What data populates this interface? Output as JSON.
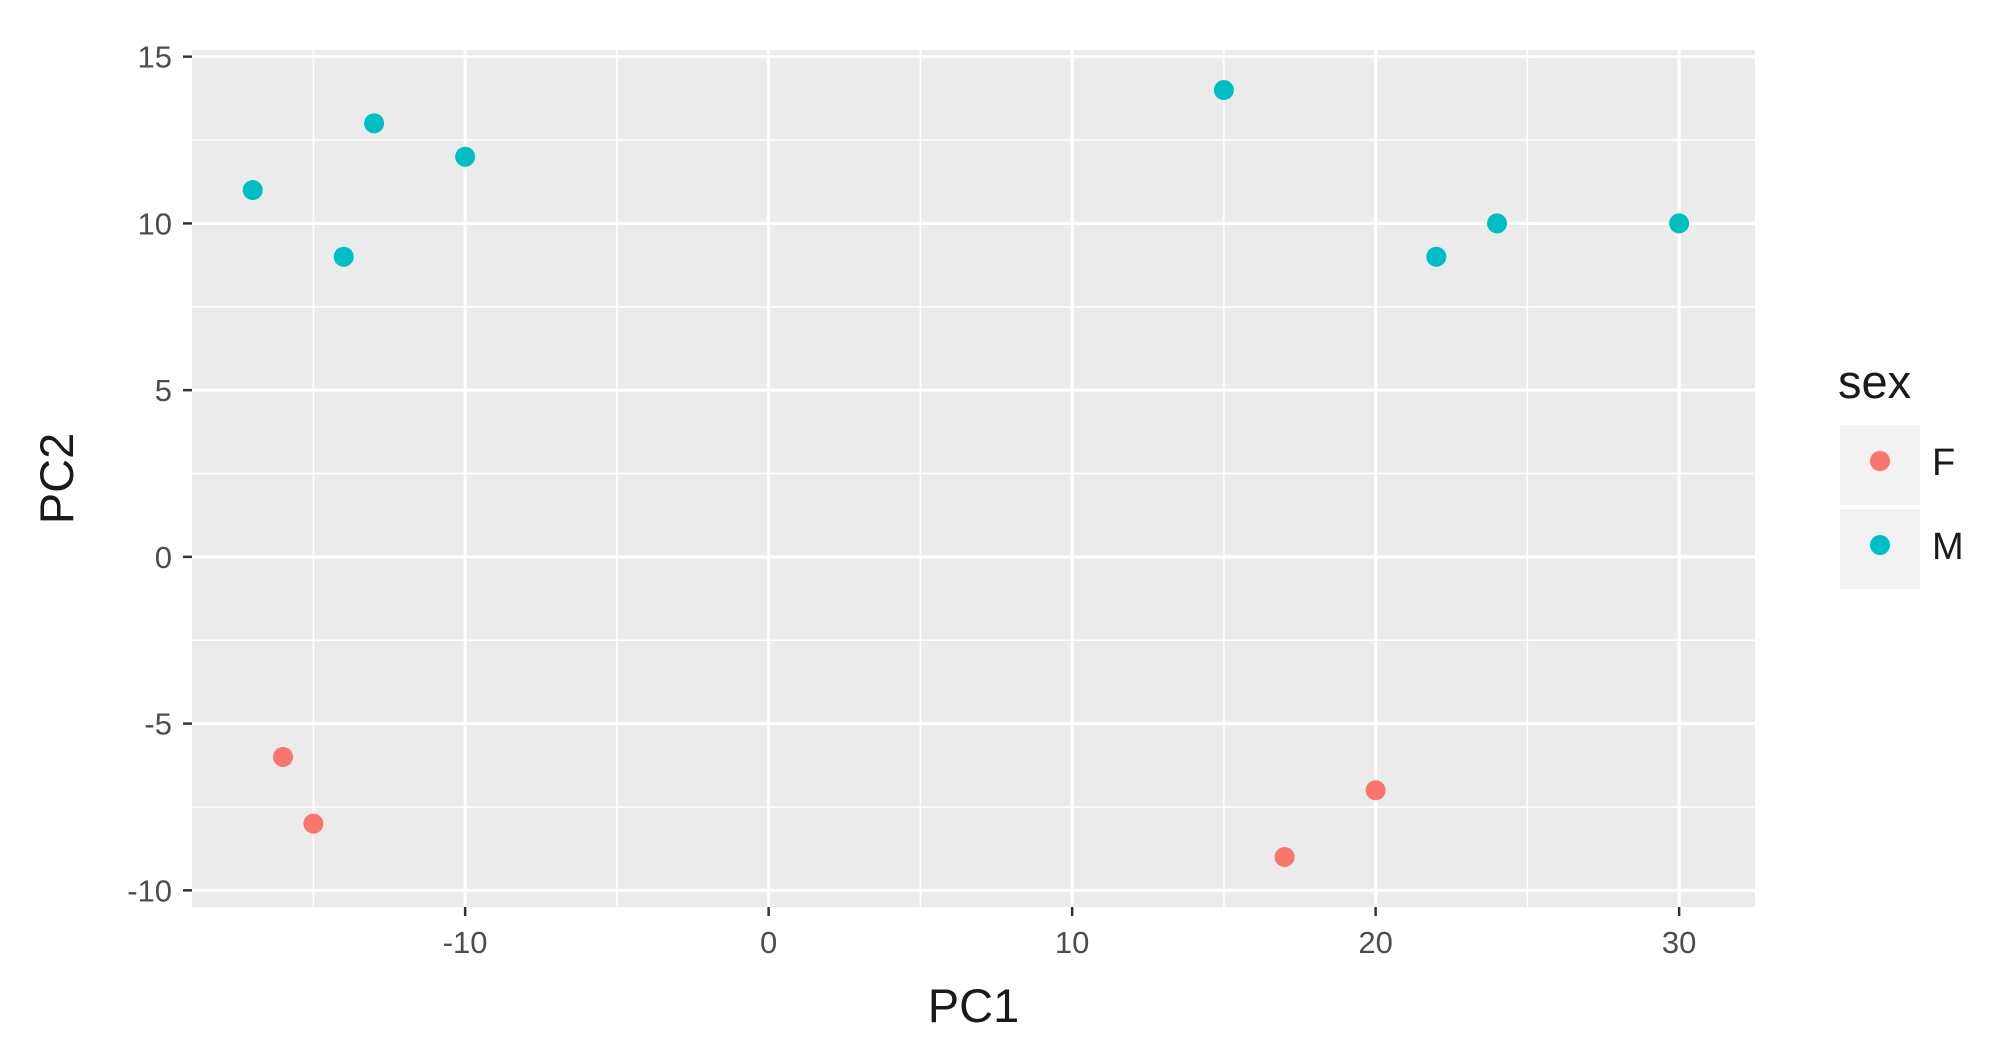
{
  "chart_data": {
    "type": "scatter",
    "xlabel": "PC1",
    "ylabel": "PC2",
    "xlim": [
      -19,
      32.5
    ],
    "ylim": [
      -10.5,
      15.2
    ],
    "x_ticks": [
      -10,
      0,
      10,
      20,
      30
    ],
    "y_ticks": [
      -10,
      -5,
      0,
      5,
      10,
      15
    ],
    "grid": true,
    "legend": {
      "title": "sex",
      "placement": "right",
      "entries": [
        {
          "label": "F",
          "color": "#F8766D"
        },
        {
          "label": "M",
          "color": "#00BFC4"
        }
      ]
    },
    "series": [
      {
        "name": "F",
        "color": "#F8766D",
        "points": [
          {
            "x": -16,
            "y": -6
          },
          {
            "x": -15,
            "y": -8
          },
          {
            "x": 17,
            "y": -9
          },
          {
            "x": 20,
            "y": -7
          }
        ]
      },
      {
        "name": "M",
        "color": "#00BFC4",
        "points": [
          {
            "x": -17,
            "y": 11
          },
          {
            "x": -14,
            "y": 9
          },
          {
            "x": -13,
            "y": 13
          },
          {
            "x": -10,
            "y": 12
          },
          {
            "x": 15,
            "y": 14
          },
          {
            "x": 22,
            "y": 9
          },
          {
            "x": 24,
            "y": 10
          },
          {
            "x": 30,
            "y": 10
          }
        ]
      }
    ],
    "panel_color": "#EBEBEB",
    "grid_color": "#FFFFFF"
  }
}
